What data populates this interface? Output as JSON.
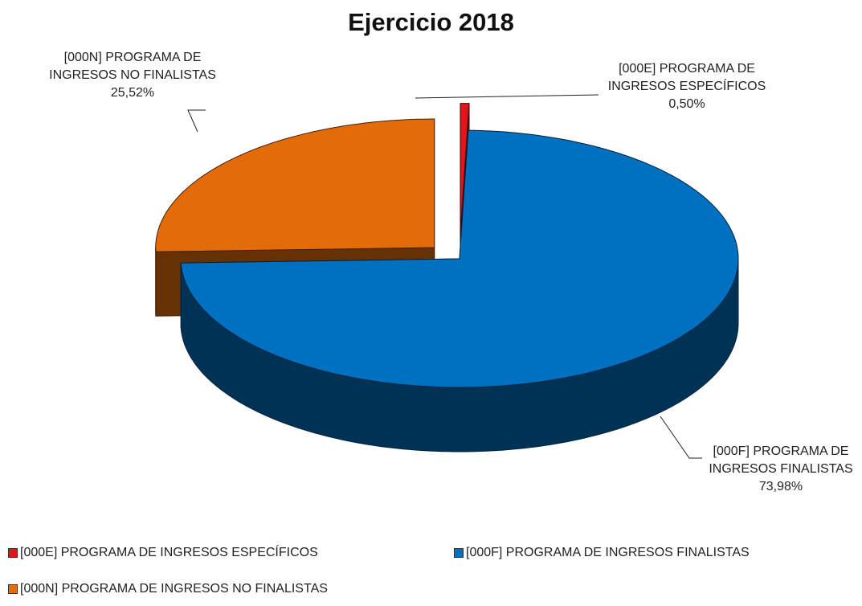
{
  "chart_data": {
    "type": "pie3d",
    "title": "Ejercicio 2018",
    "categories": [
      "[000E] PROGRAMA DE INGRESOS ESPECÍFICOS",
      "[000F] PROGRAMA DE INGRESOS FINALISTAS",
      "[000N] PROGRAMA DE INGRESOS NO FINALISTAS"
    ],
    "values": [
      0.5,
      73.98,
      25.52
    ],
    "value_labels": [
      "0,50%",
      "73,98%",
      "25,52%"
    ],
    "colors": [
      "#e0161b",
      "#0070c0",
      "#e36c0a"
    ],
    "legend": "bottom"
  }
}
